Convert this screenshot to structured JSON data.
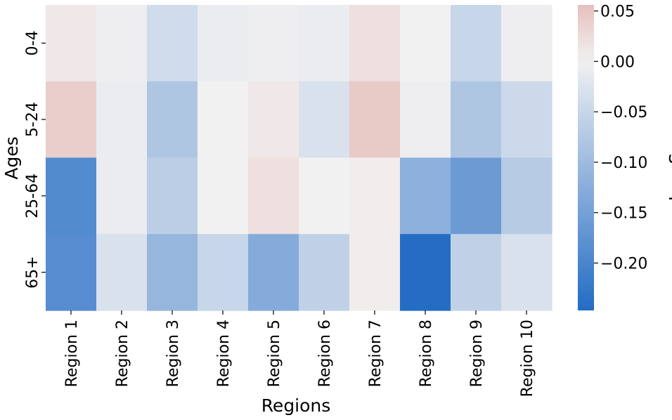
{
  "chart_data": {
    "type": "heatmap",
    "title": "",
    "xlabel": "Regions",
    "ylabel": "Ages",
    "x_categories": [
      "Region 1",
      "Region 2",
      "Region 3",
      "Region 4",
      "Region 5",
      "Region 6",
      "Region 7",
      "Region 8",
      "Region 9",
      "Region 10"
    ],
    "y_categories": [
      "0-4",
      "5-24",
      "25-64",
      "65+"
    ],
    "values": [
      [
        0.01,
        -0.005,
        -0.04,
        -0.01,
        -0.005,
        -0.01,
        0.02,
        0.0,
        -0.05,
        -0.005
      ],
      [
        0.04,
        -0.01,
        -0.08,
        0.0,
        0.01,
        -0.03,
        0.045,
        -0.005,
        -0.08,
        -0.045
      ],
      [
        -0.19,
        -0.01,
        -0.065,
        0.0,
        0.02,
        0.0,
        0.005,
        -0.12,
        -0.16,
        -0.07
      ],
      [
        -0.185,
        -0.03,
        -0.11,
        -0.05,
        -0.13,
        -0.06,
        0.005,
        -0.245,
        -0.06,
        -0.03
      ]
    ],
    "colorbar": {
      "label": "Log Score",
      "vmin": -0.247,
      "vmax": 0.056,
      "ticks": [
        0.05,
        0.0,
        -0.05,
        -0.1,
        -0.15,
        -0.2
      ],
      "tick_labels": [
        "0.05",
        "0.00",
        "−0.05",
        "−0.10",
        "−0.15",
        "−0.20"
      ],
      "colormap": {
        "negative_end": "#236cc4",
        "center": "#f2f1f2",
        "positive_end": "#e6c0bc"
      }
    }
  }
}
